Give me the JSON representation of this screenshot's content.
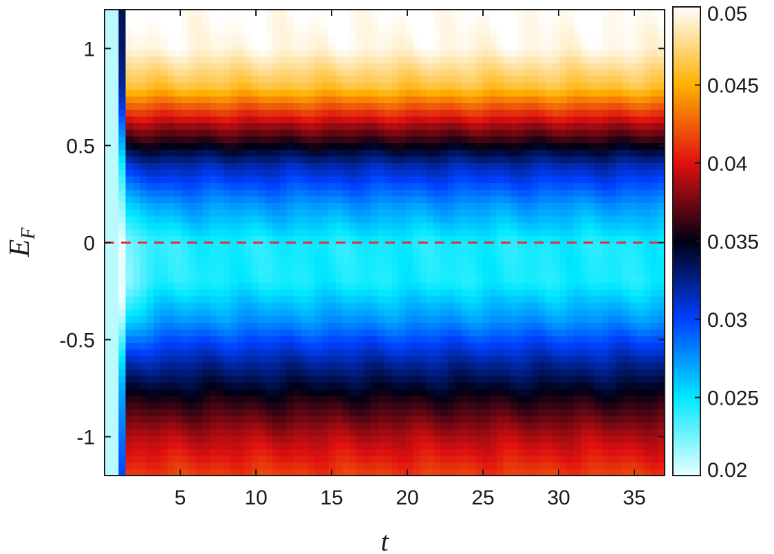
{
  "chart_data": {
    "type": "heatmap",
    "title": "",
    "xlabel": "t",
    "ylabel_main": "E",
    "ylabel_sub": "F",
    "xlim": [
      0,
      37
    ],
    "ylim": [
      -1.2,
      1.2
    ],
    "x_ticks": [
      5,
      10,
      15,
      20,
      25,
      30,
      35
    ],
    "y_ticks": [
      -1,
      -0.5,
      0,
      0.5,
      1
    ],
    "x_tick_labels": [
      "5",
      "10",
      "15",
      "20",
      "25",
      "30",
      "35"
    ],
    "y_tick_labels": [
      "-1",
      "-0.5",
      "0",
      "0.5",
      "1"
    ],
    "colorbar": {
      "range": [
        0.02,
        0.05
      ],
      "ticks": [
        0.02,
        0.025,
        0.03,
        0.035,
        0.04,
        0.045,
        0.05
      ],
      "tick_labels": [
        "0.02",
        "0.025",
        "0.03",
        "0.035",
        "0.04",
        "0.045",
        "0.05"
      ],
      "colormap": [
        "#e8ffff",
        "#00e8ff",
        "#0040ff",
        "#000014",
        "#e01010",
        "#ffb000",
        "#ffffff"
      ]
    },
    "profile_E": [
      -1.2,
      -1.0,
      -0.8,
      -0.6,
      -0.4,
      -0.2,
      0.0,
      0.2,
      0.4,
      0.6,
      0.8,
      1.0,
      1.2
    ],
    "profile_value": [
      0.0415,
      0.039,
      0.0355,
      0.0318,
      0.0275,
      0.0245,
      0.0245,
      0.0275,
      0.0318,
      0.0385,
      0.046,
      0.0495,
      0.05
    ],
    "initial_value": 0.021,
    "reference_line": {
      "y": 0,
      "color": "#e53030",
      "style": "dashed"
    },
    "grid": false
  }
}
